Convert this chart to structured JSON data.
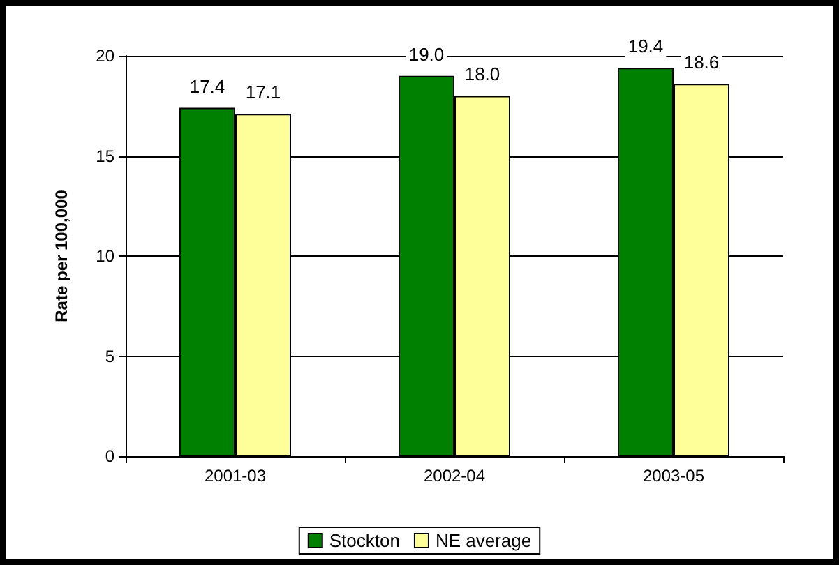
{
  "chart_data": {
    "type": "bar",
    "ylabel": "Rate per 100,000",
    "categories": [
      "2001-03",
      "2002-04",
      "2003-05"
    ],
    "series": [
      {
        "name": "Stockton",
        "color": "#008000",
        "values": [
          17.4,
          19.0,
          19.4
        ],
        "value_labels": [
          "17.4",
          "19.0",
          "19.4"
        ]
      },
      {
        "name": "NE average",
        "color": "#ffff99",
        "values": [
          17.1,
          18.0,
          18.6
        ],
        "value_labels": [
          "17.1",
          "18.0",
          "18.6"
        ]
      }
    ],
    "ylim": [
      0,
      20
    ],
    "yticks": [
      0,
      5,
      10,
      15,
      20
    ],
    "grid": "y",
    "legend": "bottom"
  }
}
